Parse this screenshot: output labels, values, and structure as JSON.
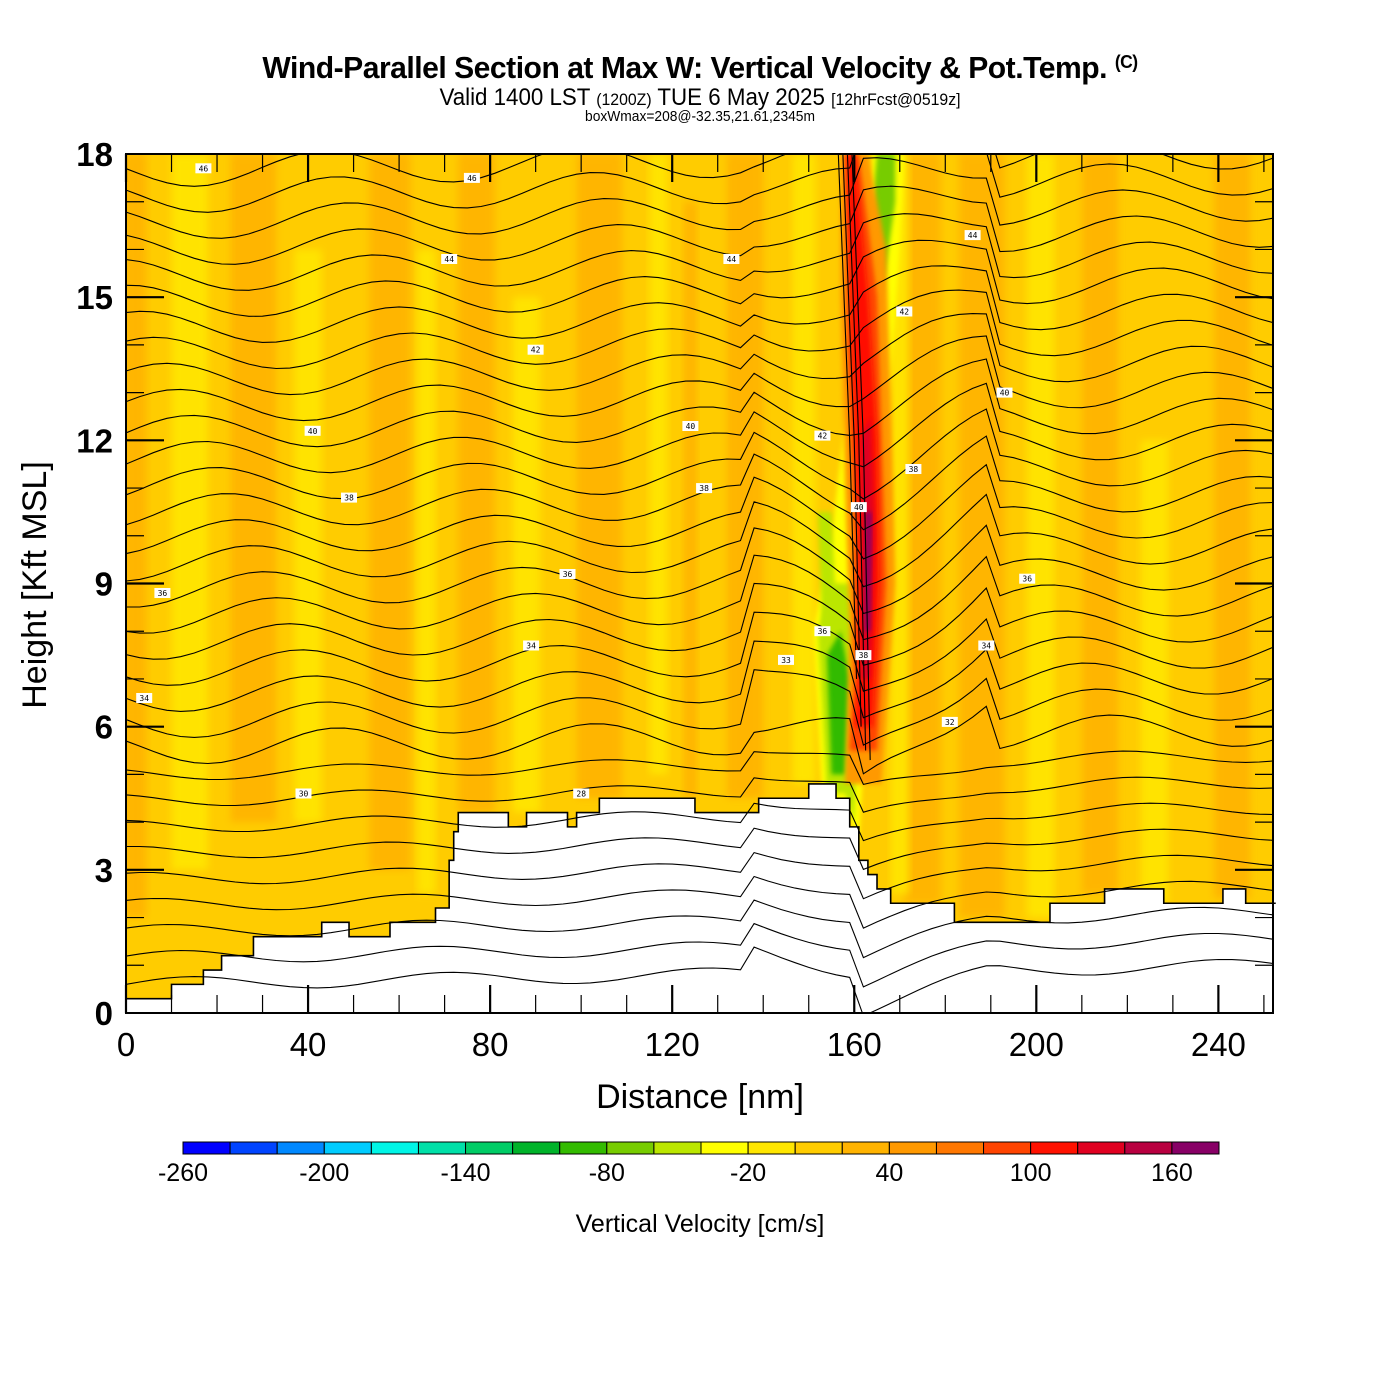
{
  "header": {
    "title": "Wind-Parallel Section at Max W: Vertical Velocity & Pot.Temp.",
    "copyright": "(C)",
    "valid_prefix": "Valid 1400 LST",
    "valid_utc": "(1200Z)",
    "valid_date": "TUE 6 May 2025",
    "forecast": "[12hrFcst@0519z]",
    "box_info": "boxWmax=208@-32.35,21.61,2345m"
  },
  "chart_data": {
    "type": "heatmap",
    "title": "Wind-Parallel Section at Max W: Vertical Velocity & Pot.Temp.",
    "xlabel": "Distance [nm]",
    "ylabel": "Height [Kft MSL]",
    "xlim": [
      0,
      252
    ],
    "ylim": [
      0,
      18
    ],
    "xticks": [
      0,
      40,
      80,
      120,
      160,
      200,
      240
    ],
    "xtick_labels": [
      "0",
      "40",
      "80",
      "120",
      "160",
      "200",
      "240"
    ],
    "yticks": [
      0,
      3,
      6,
      9,
      12,
      15,
      18
    ],
    "ytick_labels": [
      "0",
      "3",
      "6",
      "9",
      "12",
      "15",
      "18"
    ],
    "grid": false,
    "fill_variable": "Vertical Velocity [cm/s]",
    "contour_variable": "Potential Temperature",
    "colorbar": {
      "title": "Vertical Velocity [cm/s]",
      "placement": "bottom",
      "levels": [
        -260,
        -240,
        -220,
        -200,
        -180,
        -160,
        -140,
        -120,
        -100,
        -80,
        -60,
        -40,
        -20,
        0,
        20,
        40,
        60,
        80,
        100,
        120,
        140,
        160,
        180
      ],
      "tick_labels": [
        "-260",
        "-200",
        "-140",
        "-80",
        "-20",
        "40",
        "100",
        "160"
      ],
      "tick_values": [
        -260,
        -200,
        -140,
        -80,
        -20,
        40,
        100,
        160
      ],
      "colors": [
        "#0000ff",
        "#0044ff",
        "#0088ff",
        "#00ccff",
        "#00f5e6",
        "#00e0a8",
        "#00cc66",
        "#00b32a",
        "#33bb00",
        "#77cc00",
        "#bbe600",
        "#ffff00",
        "#ffe600",
        "#ffcc00",
        "#ffb300",
        "#ff9900",
        "#ff7700",
        "#ff4400",
        "#ff1100",
        "#e00020",
        "#b80040",
        "#880066"
      ]
    },
    "updraft": {
      "max_w_cms": 208,
      "core_x_nm": 162,
      "core_base_kft": 4.8,
      "core_top_kft": 18
    },
    "downdraft_band": {
      "x_nm_range": [
        152,
        168
      ],
      "min_w_cms": -110
    },
    "contour_labels": [
      {
        "x": 17,
        "y": 17.7,
        "text": "46"
      },
      {
        "x": 76,
        "y": 17.5,
        "text": "46"
      },
      {
        "x": 71,
        "y": 15.8,
        "text": "44"
      },
      {
        "x": 133,
        "y": 15.8,
        "text": "44"
      },
      {
        "x": 186,
        "y": 16.3,
        "text": "44"
      },
      {
        "x": 90,
        "y": 13.9,
        "text": "42"
      },
      {
        "x": 171,
        "y": 14.7,
        "text": "42"
      },
      {
        "x": 41,
        "y": 12.2,
        "text": "40"
      },
      {
        "x": 124,
        "y": 12.3,
        "text": "40"
      },
      {
        "x": 153,
        "y": 12.1,
        "text": "42"
      },
      {
        "x": 193,
        "y": 13.0,
        "text": "40"
      },
      {
        "x": 49,
        "y": 10.8,
        "text": "38"
      },
      {
        "x": 127,
        "y": 11.0,
        "text": "38"
      },
      {
        "x": 161,
        "y": 10.6,
        "text": "40"
      },
      {
        "x": 173,
        "y": 11.4,
        "text": "38"
      },
      {
        "x": 8,
        "y": 8.8,
        "text": "36"
      },
      {
        "x": 97,
        "y": 9.2,
        "text": "36"
      },
      {
        "x": 198,
        "y": 9.1,
        "text": "36"
      },
      {
        "x": 89,
        "y": 7.7,
        "text": "34"
      },
      {
        "x": 145,
        "y": 7.4,
        "text": "33"
      },
      {
        "x": 153,
        "y": 8.0,
        "text": "36"
      },
      {
        "x": 162,
        "y": 7.5,
        "text": "38"
      },
      {
        "x": 189,
        "y": 7.7,
        "text": "34"
      },
      {
        "x": 4,
        "y": 6.6,
        "text": "34"
      },
      {
        "x": 181,
        "y": 6.1,
        "text": "32"
      },
      {
        "x": 39,
        "y": 4.6,
        "text": "30"
      },
      {
        "x": 100,
        "y": 4.6,
        "text": "28"
      }
    ],
    "terrain_profile_kft": [
      [
        0,
        0.3
      ],
      [
        10,
        0.6
      ],
      [
        17,
        0.9
      ],
      [
        21,
        1.2
      ],
      [
        28,
        1.6
      ],
      [
        36,
        1.6
      ],
      [
        43,
        1.9
      ],
      [
        49,
        1.6
      ],
      [
        58,
        1.9
      ],
      [
        68,
        2.2
      ],
      [
        71,
        3.2
      ],
      [
        72,
        3.8
      ],
      [
        73,
        4.2
      ],
      [
        84,
        3.9
      ],
      [
        88,
        4.2
      ],
      [
        97,
        3.9
      ],
      [
        99,
        4.2
      ],
      [
        104,
        4.5
      ],
      [
        125,
        4.2
      ],
      [
        139,
        4.5
      ],
      [
        150,
        4.8
      ],
      [
        156,
        4.5
      ],
      [
        159,
        3.9
      ],
      [
        161,
        3.2
      ],
      [
        163,
        2.9
      ],
      [
        165,
        2.6
      ],
      [
        168,
        2.3
      ],
      [
        182,
        1.9
      ],
      [
        203,
        2.3
      ],
      [
        215,
        2.6
      ],
      [
        228,
        2.3
      ],
      [
        241,
        2.6
      ],
      [
        246,
        2.3
      ],
      [
        252,
        2.3
      ]
    ]
  }
}
